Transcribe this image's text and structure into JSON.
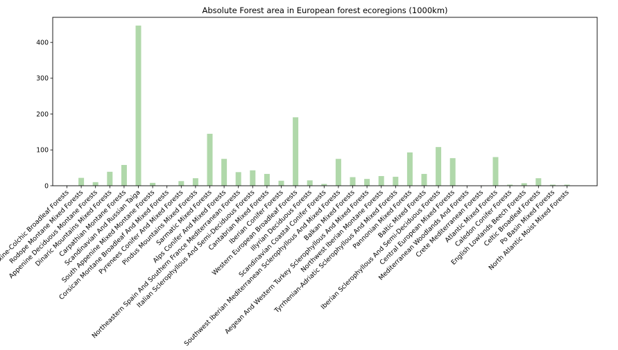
{
  "chart_data": {
    "type": "bar",
    "title": "Absolute Forest area in European forest ecoregions (1000km)",
    "xlabel": "",
    "ylabel": "",
    "ylim": [
      0,
      470
    ],
    "yticks": [
      0,
      100,
      200,
      300,
      400
    ],
    "grid": false,
    "bar_color": "#b0d8aa",
    "categories": [
      "Euxine-Colchic Broadleaf Forests",
      "Rodope Montane Mixed Forests",
      "Appenine Deciduous Montane Forests",
      "Dinaric Mountains Mixed Forests",
      "Carpathian Montane Forests",
      "Scandinavian And Russian Taiga",
      "South Appenine Mixed Montane Forests",
      "Corsican Montane Broadleaf And Mixed Forests",
      "Pyrenees Conifer And Mixed Forests",
      "Pindus Mountains Mixed Forests",
      "Sarmatic Mixed Forests",
      "Alps Conifer And Mixed Forests",
      "Northeastern Spain And Southern France Mediterranean Forests",
      "Italian Sclerophyllous And Semi-Deciduous Forests",
      "Cantabrian Mixed Forests",
      "Iberian Conifer Forests",
      "Western European Broadleaf Forests",
      "Illyrian Deciduous Forests",
      "Scandinavian Coastal Conifer Forests",
      "Southwest Iberian Mediterranean Sclerophyllous And Mixed Forests",
      "Balkan Mixed Forests",
      "Aegean And Western Turkey Sclerophyllous And Mixed Forests",
      "Northwest Iberian Montane Forests",
      "Tyrrhenian-Adriatic Sclerophyllous And Mixed Forests",
      "Pannonian Mixed Forests",
      "Baltic Mixed Forests",
      "Iberian Sclerophyllous And Semi-Deciduous Forests",
      "Central European Mixed Forests",
      "Mediterranean Woodlands And Forests",
      "Crete Mediterranean Forests",
      "Atlantic Mixed Forests",
      "Caledon Conifer Forests",
      "English Lowlands Beech Forests",
      "Celtic Broadleaf Forests",
      "Po Basin Mixed Forests",
      "North Atlantic Moist Mixed Forests"
    ],
    "values": [
      0.5,
      22,
      10,
      39,
      58,
      447,
      8,
      0.5,
      13,
      21,
      145,
      75,
      38,
      43,
      33,
      14,
      191,
      15,
      5,
      75,
      24,
      19,
      27,
      25,
      93,
      33,
      108,
      77,
      0.5,
      0.5,
      80,
      3,
      7,
      21,
      3,
      3
    ]
  }
}
